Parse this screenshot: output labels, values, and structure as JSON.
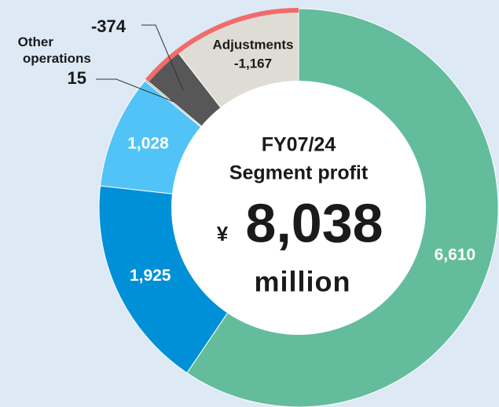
{
  "chart_data": {
    "type": "donut",
    "categories": [
      null,
      null,
      null,
      "Other operations",
      null,
      "Adjustments"
    ],
    "values": [
      6610,
      1925,
      1028,
      15,
      -374,
      -1167
    ],
    "value_labels": [
      "6,610",
      "1,925",
      "1,028",
      "15",
      "-374",
      "-1,167"
    ],
    "colors": [
      "#63bd9c",
      "#0090d8",
      "#52c3f7",
      "#9aa0a6",
      "#575757",
      "#dfdcd5"
    ],
    "negative_color": "#f26b6b",
    "center": {
      "title": "FY07/24",
      "subtitle": "Segment profit",
      "currency": "¥",
      "total": "8,038",
      "unit": "million"
    }
  }
}
